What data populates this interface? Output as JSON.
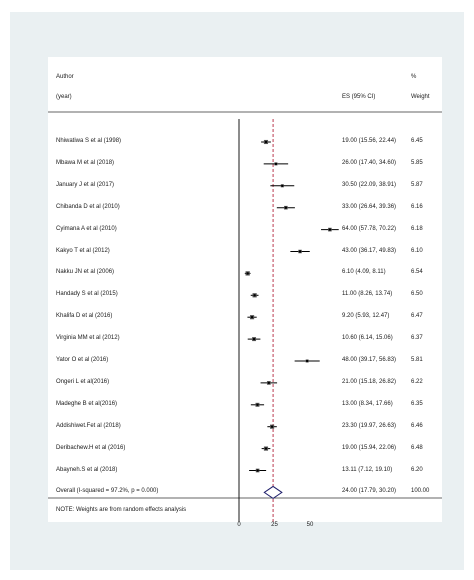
{
  "header": {
    "author": "Author",
    "year": "(year)",
    "es": "ES (95% CI)",
    "pct": "%",
    "weight": "Weight"
  },
  "note": "NOTE: Weights are from random effects analysis",
  "chart_data": {
    "type": "forest",
    "xlim": [
      0,
      50
    ],
    "xticks": [
      0,
      25,
      50
    ],
    "reference_line": 24,
    "studies": [
      {
        "label": "Nhiwatiwa S et al (1998)",
        "es": 19.0,
        "lo": 15.56,
        "hi": 22.44,
        "es_text": "19.00 (15.56, 22.44)",
        "weight": "6.45"
      },
      {
        "label": "Mbawa M et al (2018)",
        "es": 26.0,
        "lo": 17.4,
        "hi": 34.6,
        "es_text": "26.00 (17.40, 34.60)",
        "weight": "5.85"
      },
      {
        "label": "January J et al (2017)",
        "es": 30.5,
        "lo": 22.09,
        "hi": 38.91,
        "es_text": "30.50 (22.09, 38.91)",
        "weight": "5.87"
      },
      {
        "label": "Chibanda D et al (2010)",
        "es": 33.0,
        "lo": 26.64,
        "hi": 39.36,
        "es_text": "33.00 (26.64, 39.36)",
        "weight": "6.16"
      },
      {
        "label": "Cyimana A et al (2010)",
        "es": 64.0,
        "lo": 57.78,
        "hi": 70.22,
        "es_text": "64.00 (57.78, 70.22)",
        "weight": "6.18"
      },
      {
        "label": "Kakyo T et al (2012)",
        "es": 43.0,
        "lo": 36.17,
        "hi": 49.83,
        "es_text": "43.00 (36.17, 49.83)",
        "weight": "6.10"
      },
      {
        "label": "Nakku JN et al (2006)",
        "es": 6.1,
        "lo": 4.09,
        "hi": 8.11,
        "es_text": "6.10 (4.09, 8.11)",
        "weight": "6.54"
      },
      {
        "label": "Handady S et al (2015)",
        "es": 11.0,
        "lo": 8.26,
        "hi": 13.74,
        "es_text": "11.00 (8.26, 13.74)",
        "weight": "6.50"
      },
      {
        "label": "Khalifa D et al (2016)",
        "es": 9.2,
        "lo": 5.93,
        "hi": 12.47,
        "es_text": "9.20 (5.93, 12.47)",
        "weight": "6.47"
      },
      {
        "label": "Virginia MM et al (2012)",
        "es": 10.6,
        "lo": 6.14,
        "hi": 15.06,
        "es_text": "10.60 (6.14, 15.06)",
        "weight": "6.37"
      },
      {
        "label": "Yator O et al (2016)",
        "es": 48.0,
        "lo": 39.17,
        "hi": 56.83,
        "es_text": "48.00 (39.17, 56.83)",
        "weight": "5.81"
      },
      {
        "label": "Ongeri L et al(2016)",
        "es": 21.0,
        "lo": 15.18,
        "hi": 26.82,
        "es_text": "21.00 (15.18, 26.82)",
        "weight": "6.22"
      },
      {
        "label": "Madeghe B et al(2016)",
        "es": 13.0,
        "lo": 8.34,
        "hi": 17.66,
        "es_text": "13.00 (8.34, 17.66)",
        "weight": "6.35"
      },
      {
        "label": "Addishiwet.Fet al (2018)",
        "es": 23.3,
        "lo": 19.97,
        "hi": 26.63,
        "es_text": "23.30 (19.97, 26.63)",
        "weight": "6.46"
      },
      {
        "label": "Deribachew.H et al (2016)",
        "es": 19.0,
        "lo": 15.94,
        "hi": 22.06,
        "es_text": "19.00 (15.94, 22.06)",
        "weight": "6.48"
      },
      {
        "label": "Abayneh.S et al (2018)",
        "es": 13.11,
        "lo": 7.12,
        "hi": 19.1,
        "es_text": "13.11 (7.12, 19.10)",
        "weight": "6.20"
      }
    ],
    "overall": {
      "label": "Overall  (I-squared = 97.2%, p = 0.000)",
      "es": 24.0,
      "lo": 17.79,
      "hi": 30.2,
      "es_text": "24.00 (17.79, 30.20)",
      "weight": "100.00"
    }
  }
}
